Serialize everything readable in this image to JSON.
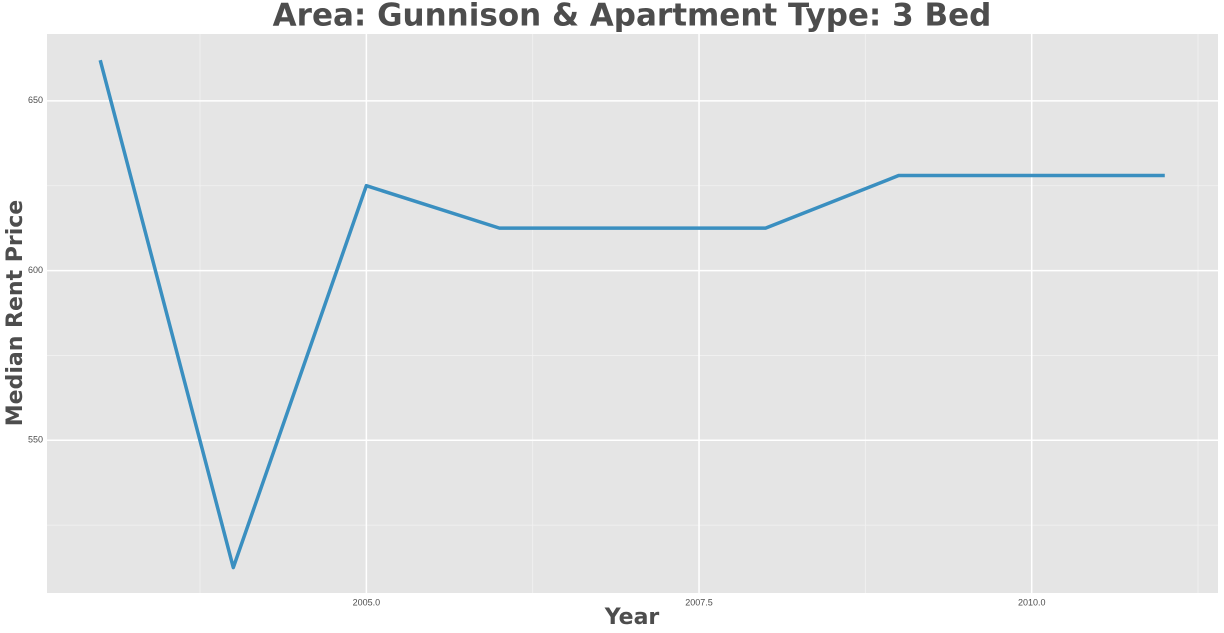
{
  "chart_data": {
    "type": "line",
    "title": "Area: Gunnison & Apartment Type: 3 Bed",
    "x_label": "Year",
    "y_label": "Median Rent Price",
    "x": [
      2003,
      2004,
      2005,
      2006,
      2007,
      2008,
      2009,
      2010,
      2011
    ],
    "series": [
      {
        "color": "#3a8fc0",
        "values": [
          662,
          512.5,
          625,
          612.5,
          612.5,
          612.5,
          628,
          628,
          628
        ]
      }
    ],
    "xlim": [
      2002.6,
      2011.4
    ],
    "xticks": [
      {
        "value": 2005,
        "label": "2005.0"
      },
      {
        "value": 2007.5,
        "label": "2007.5"
      },
      {
        "value": 2010,
        "label": "2010.0"
      }
    ],
    "minor_xticks": [
      2003.75,
      2006.25,
      2008.75,
      2011.25
    ],
    "ylim": [
      505,
      669.7
    ],
    "yticks": [
      550,
      600,
      650
    ],
    "minor_yticks": [
      525,
      575,
      625
    ],
    "grid": true,
    "background": "#e5e5e5"
  }
}
